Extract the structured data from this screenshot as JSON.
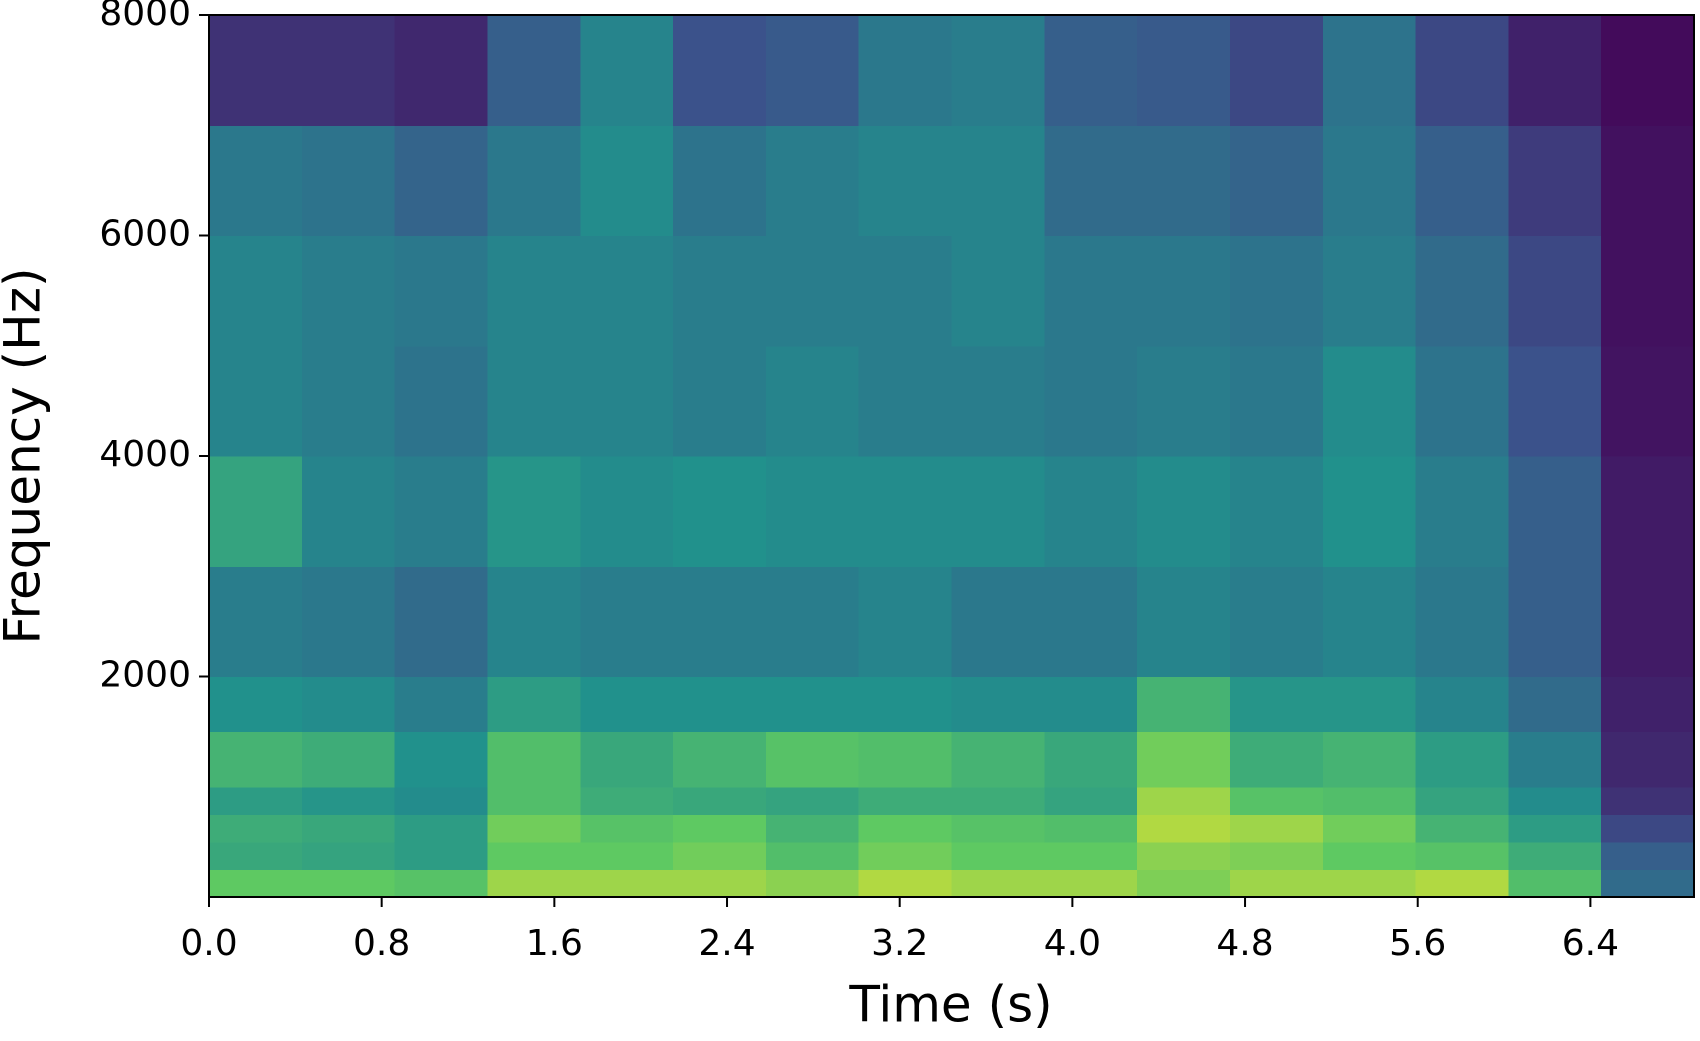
{
  "chart_data": {
    "type": "heatmap",
    "x_label": "Time (s)",
    "y_label": "Frequency (Hz)",
    "xlim": [
      0,
      6.88
    ],
    "ylim": [
      0,
      8000
    ],
    "xticks": [
      {
        "value": 0,
        "label": "0.0"
      },
      0.8,
      1.6,
      2.4,
      3.2,
      {
        "value": 4,
        "label": "4.0"
      },
      4.8,
      5.6,
      6.4
    ],
    "yticks": [
      2000,
      4000,
      6000,
      8000
    ],
    "colormap": "viridis",
    "zlim": [
      0,
      100
    ],
    "x_edges": [
      0,
      0.43,
      0.86,
      1.29,
      1.72,
      2.15,
      2.58,
      3.01,
      3.44,
      3.87,
      4.3,
      4.73,
      5.16,
      5.59,
      6.02,
      6.45,
      6.88
    ],
    "y_edges": [
      0,
      250,
      500,
      750,
      1000,
      1500,
      2000,
      3000,
      4000,
      5000,
      6000,
      7000,
      8000
    ],
    "z": [
      [
        75,
        75,
        72,
        85,
        85,
        85,
        82,
        88,
        85,
        85,
        80,
        85,
        85,
        88,
        70,
        35
      ],
      [
        60,
        58,
        55,
        75,
        75,
        78,
        70,
        78,
        75,
        75,
        82,
        80,
        75,
        72,
        62,
        30
      ],
      [
        62,
        60,
        55,
        78,
        72,
        75,
        65,
        75,
        72,
        70,
        88,
        85,
        78,
        65,
        55,
        22
      ],
      [
        55,
        52,
        48,
        70,
        62,
        60,
        58,
        62,
        62,
        58,
        85,
        72,
        70,
        58,
        48,
        15
      ],
      [
        65,
        62,
        50,
        70,
        60,
        65,
        72,
        70,
        65,
        60,
        78,
        62,
        65,
        55,
        42,
        12
      ],
      [
        50,
        48,
        42,
        55,
        50,
        50,
        50,
        50,
        48,
        48,
        65,
        52,
        52,
        45,
        35,
        10
      ],
      [
        42,
        40,
        35,
        45,
        42,
        42,
        42,
        45,
        40,
        40,
        45,
        42,
        45,
        40,
        30,
        8
      ],
      [
        58,
        45,
        42,
        52,
        48,
        50,
        48,
        48,
        48,
        45,
        48,
        45,
        50,
        42,
        30,
        8
      ],
      [
        45,
        42,
        38,
        45,
        45,
        42,
        45,
        42,
        42,
        40,
        42,
        40,
        48,
        38,
        25,
        6
      ],
      [
        45,
        42,
        40,
        45,
        45,
        42,
        42,
        42,
        45,
        40,
        40,
        38,
        42,
        35,
        22,
        5
      ],
      [
        40,
        38,
        32,
        40,
        48,
        38,
        42,
        45,
        45,
        35,
        35,
        32,
        40,
        30,
        18,
        5
      ],
      [
        15,
        15,
        12,
        30,
        45,
        25,
        28,
        40,
        42,
        30,
        28,
        22,
        38,
        22,
        10,
        3
      ]
    ]
  }
}
